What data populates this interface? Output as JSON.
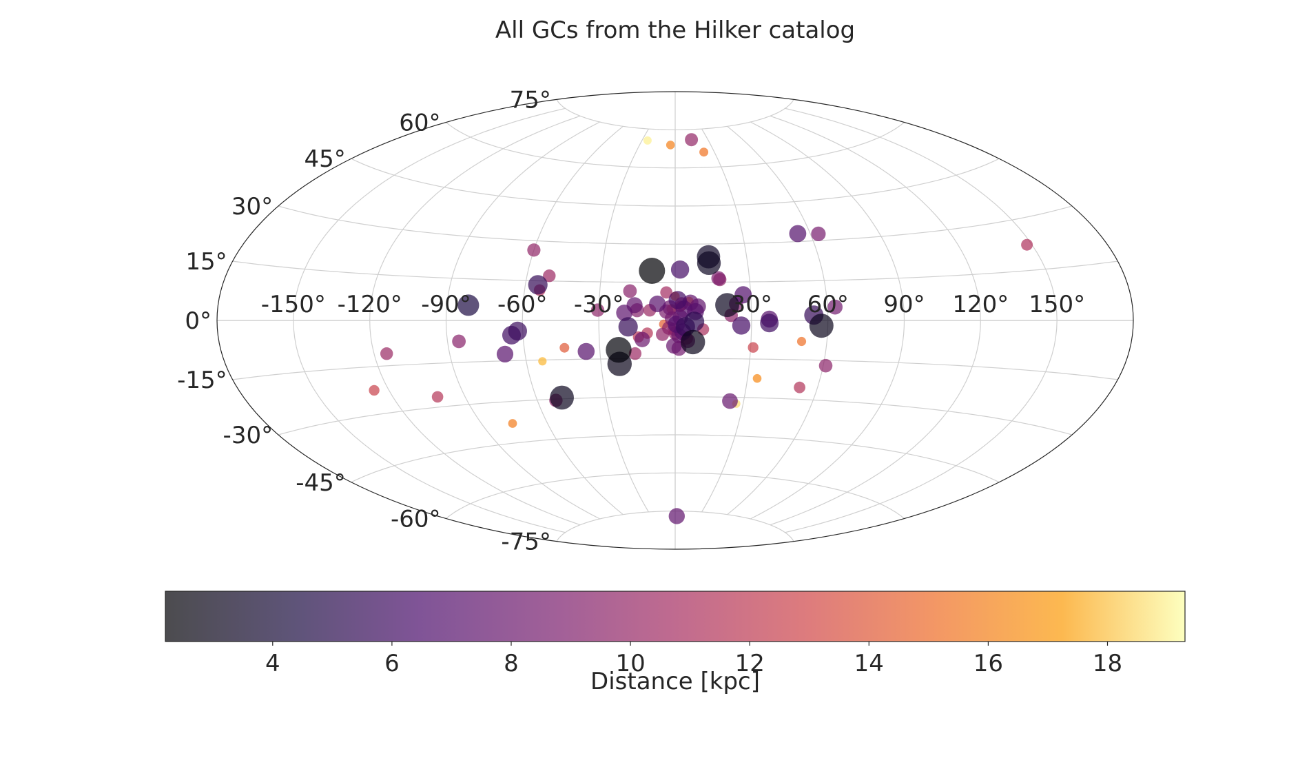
{
  "chart_data": {
    "type": "scatter",
    "projection": "aitoff",
    "title": "All GCs from the Hilker catalog",
    "xlabel": "",
    "ylabel": "",
    "x_ticks": [
      "-150°",
      "-120°",
      "-90°",
      "-60°",
      "-30°",
      "0°",
      "30°",
      "60°",
      "90°",
      "120°",
      "150°"
    ],
    "x_tick_values": [
      -150,
      -120,
      -90,
      -60,
      -30,
      0,
      30,
      60,
      90,
      120,
      150
    ],
    "y_ticks": [
      "-75°",
      "-60°",
      "-45°",
      "-30°",
      "-15°",
      "0°",
      "15°",
      "30°",
      "45°",
      "60°",
      "75°"
    ],
    "y_tick_values": [
      -75,
      -60,
      -45,
      -30,
      -15,
      0,
      15,
      30,
      45,
      60,
      75
    ],
    "grid": true,
    "colormap": "inferno",
    "marker_size_encodes": "distance (closer = larger)",
    "colorbar": {
      "label": "Distance [kpc]",
      "range": [
        2.2,
        19.3
      ],
      "ticks": [
        "4",
        "6",
        "8",
        "10",
        "12",
        "14",
        "16",
        "18"
      ],
      "tick_values": [
        4,
        6,
        8,
        10,
        12,
        14,
        16,
        18
      ],
      "orientation": "horizontal",
      "placement": "bottom"
    },
    "points": [
      {
        "l": -1.2,
        "b": 0.7,
        "d": 8.5
      },
      {
        "l": 0.5,
        "b": -1.5,
        "d": 6.8
      },
      {
        "l": 2.0,
        "b": 1.2,
        "d": 7.9
      },
      {
        "l": -2.5,
        "b": -3.0,
        "d": 9.5
      },
      {
        "l": 4.0,
        "b": -2.5,
        "d": 5.5
      },
      {
        "l": 3.5,
        "b": 4.5,
        "d": 7.0
      },
      {
        "l": -3.5,
        "b": 3.5,
        "d": 8.8
      },
      {
        "l": 1.0,
        "b": 8.0,
        "d": 6.2
      },
      {
        "l": 6.0,
        "b": 7.0,
        "d": 7.5
      },
      {
        "l": -0.5,
        "b": -3.5,
        "d": 10.0
      },
      {
        "l": 7.5,
        "b": -0.5,
        "d": 5.2
      },
      {
        "l": -7.0,
        "b": 6.5,
        "d": 7.2
      },
      {
        "l": 1.5,
        "b": -6.0,
        "d": 8.1
      },
      {
        "l": 8.0,
        "b": 3.5,
        "d": 7.0
      },
      {
        "l": 5.0,
        "b": -8.0,
        "d": 8.6
      },
      {
        "l": -5.0,
        "b": -5.5,
        "d": 9.8
      },
      {
        "l": 2.5,
        "b": 6.5,
        "d": 9.6
      },
      {
        "l": -2.0,
        "b": 5.0,
        "d": 8.2
      },
      {
        "l": 0.0,
        "b": 9.5,
        "d": 15.2
      },
      {
        "l": -1.5,
        "b": 4.5,
        "d": 14.0
      },
      {
        "l": 2.0,
        "b": 5.5,
        "d": 11.5
      },
      {
        "l": 5.5,
        "b": 7.5,
        "d": 14.8
      },
      {
        "l": 9.0,
        "b": 5.5,
        "d": 7.6
      },
      {
        "l": 3.0,
        "b": -4.5,
        "d": 7.0
      },
      {
        "l": -4.5,
        "b": -1.5,
        "d": 14.4
      },
      {
        "l": -0.5,
        "b": -10.0,
        "d": 7.9
      },
      {
        "l": 1.5,
        "b": -11.0,
        "d": 8.4
      },
      {
        "l": 0.0,
        "b": -5.0,
        "d": 9.7
      },
      {
        "l": 11.0,
        "b": -3.5,
        "d": 11.0
      },
      {
        "l": 7.0,
        "b": -8.5,
        "d": 3.0
      },
      {
        "l": 4.5,
        "b": -7.0,
        "d": 10.0
      },
      {
        "l": -3.5,
        "b": 11.0,
        "d": 10.6
      },
      {
        "l": 2.0,
        "b": 20.0,
        "d": 6.2
      },
      {
        "l": 14.0,
        "b": 22.5,
        "d": 3.3
      },
      {
        "l": 14.0,
        "b": 25.0,
        "d": 3.5
      },
      {
        "l": 18.0,
        "b": 16.0,
        "d": 9.8
      },
      {
        "l": 27.0,
        "b": 10.0,
        "d": 6.8
      },
      {
        "l": 17.5,
        "b": 16.5,
        "d": 8.9
      },
      {
        "l": 20.5,
        "b": 6.0,
        "d": 3.2
      },
      {
        "l": 22.0,
        "b": 2.0,
        "d": 9.5
      },
      {
        "l": 24.0,
        "b": 6.5,
        "d": 9.0
      },
      {
        "l": -9.5,
        "b": 19.5,
        "d": 2.2
      },
      {
        "l": -15.0,
        "b": 4.0,
        "d": 9.1
      },
      {
        "l": -18.0,
        "b": 11.5,
        "d": 9.4
      },
      {
        "l": -20.0,
        "b": 3.0,
        "d": 7.4
      },
      {
        "l": -18.5,
        "b": -2.5,
        "d": 5.5
      },
      {
        "l": -16.0,
        "b": -13.0,
        "d": 10.3
      },
      {
        "l": -14.5,
        "b": -6.5,
        "d": 11.8
      },
      {
        "l": -13.0,
        "b": -7.5,
        "d": 8.0
      },
      {
        "l": -11.0,
        "b": -5.0,
        "d": 11.5
      },
      {
        "l": -22.5,
        "b": -17.0,
        "d": 3.0
      },
      {
        "l": -22.5,
        "b": -11.5,
        "d": 2.4
      },
      {
        "l": -10.0,
        "b": 4.0,
        "d": 10.2
      },
      {
        "l": -16.0,
        "b": 6.0,
        "d": 7.6
      },
      {
        "l": -30.5,
        "b": 4.0,
        "d": 9.6
      },
      {
        "l": -35.5,
        "b": -12.0,
        "d": 7.0
      },
      {
        "l": -44.0,
        "b": -10.5,
        "d": 14.0
      },
      {
        "l": -49.0,
        "b": -29.5,
        "d": 3.2
      },
      {
        "l": -52.0,
        "b": -30.5,
        "d": 9.6
      },
      {
        "l": -53.5,
        "b": -15.5,
        "d": 17.8
      },
      {
        "l": -51.0,
        "b": 17.0,
        "d": 10.3
      },
      {
        "l": -54.0,
        "b": 11.5,
        "d": 11.4
      },
      {
        "l": -55.0,
        "b": 13.5,
        "d": 5.5
      },
      {
        "l": -64.5,
        "b": -5.5,
        "d": 6.0
      },
      {
        "l": -62.0,
        "b": -4.0,
        "d": 5.8
      },
      {
        "l": -68.0,
        "b": -12.5,
        "d": 7.2
      },
      {
        "l": -60.0,
        "b": 26.5,
        "d": 9.8
      },
      {
        "l": -81.5,
        "b": 5.5,
        "d": 4.5
      },
      {
        "l": -85.5,
        "b": -7.5,
        "d": 9.4
      },
      {
        "l": -115.0,
        "b": -11.0,
        "d": 10.2
      },
      {
        "l": -126.0,
        "b": -22.5,
        "d": 12.6
      },
      {
        "l": -101.5,
        "b": -26.5,
        "d": 11.5
      },
      {
        "l": -76.0,
        "b": -38.0,
        "d": 15.8
      },
      {
        "l": -25.0,
        "b": 70.5,
        "d": 19.0
      },
      {
        "l": -4.0,
        "b": 69.0,
        "d": 16.0
      },
      {
        "l": 15.0,
        "b": 71.0,
        "d": 9.9
      },
      {
        "l": 22.0,
        "b": 66.0,
        "d": 15.4
      },
      {
        "l": 2.0,
        "b": -77.0,
        "d": 7.5
      },
      {
        "l": 24.0,
        "b": -31.5,
        "d": 7.8
      },
      {
        "l": 27.0,
        "b": -32.5,
        "d": 18.6
      },
      {
        "l": 34.0,
        "b": -22.5,
        "d": 16.4
      },
      {
        "l": 31.0,
        "b": -10.5,
        "d": 12.6
      },
      {
        "l": 26.0,
        "b": -2.0,
        "d": 6.2
      },
      {
        "l": 37.0,
        "b": -1.0,
        "d": 6.0
      },
      {
        "l": 37.0,
        "b": 0.5,
        "d": 7.0
      },
      {
        "l": 50.0,
        "b": -8.0,
        "d": 15.2
      },
      {
        "l": 52.5,
        "b": -25.5,
        "d": 11.4
      },
      {
        "l": 61.0,
        "b": -17.0,
        "d": 9.5
      },
      {
        "l": 54.5,
        "b": 2.0,
        "d": 5.6
      },
      {
        "l": 57.5,
        "b": -2.0,
        "d": 3.1
      },
      {
        "l": 63.0,
        "b": 5.0,
        "d": 8.3
      },
      {
        "l": 54.5,
        "b": 33.0,
        "d": 6.9
      },
      {
        "l": 63.5,
        "b": 32.5,
        "d": 8.6
      },
      {
        "l": 148.0,
        "b": 22.5,
        "d": 11.2
      }
    ]
  }
}
